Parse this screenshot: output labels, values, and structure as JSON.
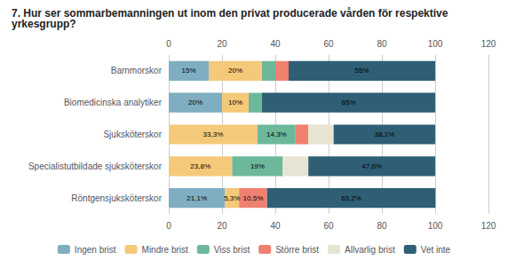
{
  "chart_data": {
    "type": "bar",
    "orientation": "horizontal",
    "stacked": true,
    "title": "7. Hur ser sommarbemanningen ut inom den privat producerade vården för respektive yrkesgrupp?",
    "categories": [
      "Röntgensjuksköterskor",
      "Specialistutbildade sjuksköterskor",
      "Sjuksköterskor",
      "Biomedicinska analytiker",
      "Barnmorskor"
    ],
    "series": [
      {
        "name": "Ingen brist",
        "color": "#7faec3",
        "values": [
          21.1,
          0.0,
          0.0,
          20.0,
          15.0
        ],
        "value_labels": [
          "21,1%",
          null,
          null,
          "20%",
          "15%"
        ]
      },
      {
        "name": "Mindre brist",
        "color": "#f5c97a",
        "values": [
          5.3,
          23.8,
          33.3,
          10.0,
          20.0
        ],
        "value_labels": [
          "5,3%",
          "23,8%",
          "33,3%",
          "10%",
          "20%"
        ]
      },
      {
        "name": "Viss brist",
        "color": "#6db89a",
        "values": [
          0.0,
          19.0,
          14.3,
          5.0,
          5.0
        ],
        "value_labels": [
          null,
          "19%",
          "14,3%",
          null,
          null
        ]
      },
      {
        "name": "Större brist",
        "color": "#f08070",
        "values": [
          10.5,
          0.0,
          4.8,
          0.0,
          5.0
        ],
        "value_labels": [
          "10,5%",
          null,
          null,
          null,
          null
        ]
      },
      {
        "name": "Allvarlig brist",
        "color": "#e8e4d4",
        "values": [
          0.0,
          9.6,
          9.5,
          0.0,
          0.0
        ],
        "value_labels": [
          null,
          null,
          null,
          null,
          null
        ]
      },
      {
        "name": "Vet inte",
        "color": "#2e5f74",
        "values": [
          63.2,
          47.6,
          38.1,
          65.0,
          55.0
        ],
        "value_labels": [
          "63,2%",
          "47,6%",
          "38,1%",
          "65%",
          "55%"
        ]
      }
    ],
    "xlim": [
      0,
      120
    ],
    "xticks": [
      0,
      20,
      40,
      60,
      80,
      100,
      120
    ],
    "grid": true,
    "legend": "bottom",
    "data_labels": true
  }
}
